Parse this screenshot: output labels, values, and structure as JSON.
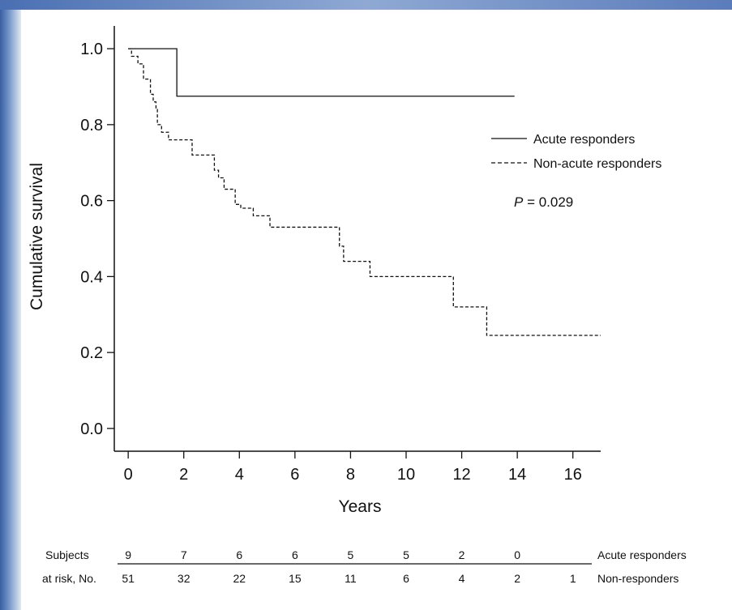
{
  "chart_data": {
    "type": "line",
    "title": "",
    "xlabel": "Years",
    "ylabel": "Cumulative survival",
    "xlim": [
      -0.5,
      17
    ],
    "ylim": [
      -0.06,
      1.06
    ],
    "xticks": [
      0,
      2,
      4,
      6,
      8,
      10,
      12,
      14,
      16
    ],
    "yticks": [
      "0.0",
      "0.2",
      "0.4",
      "0.6",
      "0.8",
      "1.0"
    ],
    "series": [
      {
        "name": "Acute responders",
        "style": "solid",
        "steps": [
          [
            0,
            1.0
          ],
          [
            1.75,
            0.875
          ],
          [
            13.9,
            0.875
          ]
        ]
      },
      {
        "name": "Non-acute responders",
        "style": "dashed",
        "steps": [
          [
            0,
            1.0
          ],
          [
            0.12,
            0.98
          ],
          [
            0.35,
            0.96
          ],
          [
            0.55,
            0.92
          ],
          [
            0.8,
            0.88
          ],
          [
            0.9,
            0.86
          ],
          [
            1.0,
            0.84
          ],
          [
            1.05,
            0.8
          ],
          [
            1.2,
            0.78
          ],
          [
            1.45,
            0.76
          ],
          [
            2.3,
            0.72
          ],
          [
            3.1,
            0.68
          ],
          [
            3.25,
            0.66
          ],
          [
            3.45,
            0.63
          ],
          [
            3.85,
            0.59
          ],
          [
            4.05,
            0.58
          ],
          [
            4.5,
            0.56
          ],
          [
            5.1,
            0.53
          ],
          [
            7.6,
            0.48
          ],
          [
            7.75,
            0.44
          ],
          [
            8.7,
            0.4
          ],
          [
            11.7,
            0.32
          ],
          [
            12.9,
            0.245
          ],
          [
            17.0,
            0.245
          ]
        ]
      }
    ],
    "legend_position": "top-right",
    "annotation": {
      "italic": "P",
      "text": " = 0.029"
    },
    "risk_table": {
      "label_line1": "Subjects",
      "label_line2": "at risk, No.",
      "rows": [
        {
          "label": "Acute responders",
          "values": [
            "9",
            "7",
            "6",
            "6",
            "5",
            "5",
            "2",
            "0"
          ]
        },
        {
          "label": "Non-responders",
          "values": [
            "51",
            "32",
            "22",
            "15",
            "11",
            "6",
            "4",
            "2",
            "1"
          ]
        }
      ]
    }
  }
}
